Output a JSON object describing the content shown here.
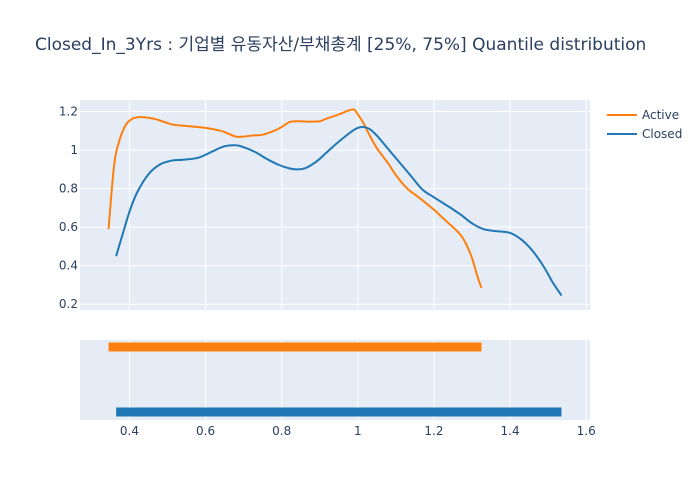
{
  "chart_data": {
    "type": "line",
    "title": "Closed_In_3Yrs : 기업별 유동자산/부채총계 [25%, 75%] Quantile distribution",
    "xlabel": "",
    "ylabel": "",
    "xlim": [
      0.27,
      1.61
    ],
    "ylim": [
      0.17,
      1.26
    ],
    "x_ticks": [
      0.4,
      0.6,
      0.8,
      1,
      1.2,
      1.4,
      1.6
    ],
    "y_ticks": [
      0.2,
      0.4,
      0.6,
      0.8,
      1,
      1.2
    ],
    "x_tick_labels": [
      "0.4",
      "0.6",
      "0.8",
      "1",
      "1.2",
      "1.4",
      "1.6"
    ],
    "y_tick_labels": [
      "0.2",
      "0.4",
      "0.6",
      "0.8",
      "1",
      "1.2"
    ],
    "grid": true,
    "legend_position": "top-right",
    "series": [
      {
        "name": "Active",
        "color": "#ff7f0e",
        "x": [
          0.345,
          0.36,
          0.375,
          0.39,
          0.405,
          0.42,
          0.44,
          0.47,
          0.5,
          0.52,
          0.55,
          0.6,
          0.64,
          0.66,
          0.68,
          0.7,
          0.72,
          0.75,
          0.78,
          0.8,
          0.82,
          0.84,
          0.87,
          0.9,
          0.92,
          0.95,
          0.975,
          0.99,
          1.0,
          1.015,
          1.03,
          1.05,
          1.08,
          1.1,
          1.13,
          1.16,
          1.2,
          1.23,
          1.25,
          1.27,
          1.285,
          1.3,
          1.315,
          1.325
        ],
        "y": [
          0.59,
          0.93,
          1.06,
          1.13,
          1.16,
          1.17,
          1.17,
          1.16,
          1.14,
          1.13,
          1.125,
          1.115,
          1.1,
          1.085,
          1.07,
          1.07,
          1.075,
          1.08,
          1.1,
          1.12,
          1.145,
          1.15,
          1.148,
          1.15,
          1.165,
          1.185,
          1.205,
          1.21,
          1.185,
          1.14,
          1.08,
          1.01,
          0.93,
          0.87,
          0.8,
          0.755,
          0.69,
          0.635,
          0.6,
          0.56,
          0.51,
          0.44,
          0.34,
          0.285
        ]
      },
      {
        "name": "Closed",
        "color": "#1f77b4",
        "x": [
          0.365,
          0.38,
          0.4,
          0.42,
          0.45,
          0.48,
          0.51,
          0.54,
          0.58,
          0.62,
          0.65,
          0.68,
          0.7,
          0.73,
          0.76,
          0.79,
          0.82,
          0.84,
          0.86,
          0.88,
          0.9,
          0.93,
          0.96,
          0.99,
          1.01,
          1.03,
          1.05,
          1.08,
          1.11,
          1.14,
          1.17,
          1.2,
          1.24,
          1.27,
          1.3,
          1.33,
          1.36,
          1.4,
          1.43,
          1.46,
          1.49,
          1.51,
          1.535
        ],
        "y": [
          0.45,
          0.55,
          0.68,
          0.78,
          0.875,
          0.925,
          0.945,
          0.95,
          0.96,
          0.995,
          1.02,
          1.025,
          1.015,
          0.99,
          0.955,
          0.925,
          0.905,
          0.9,
          0.905,
          0.925,
          0.955,
          1.01,
          1.06,
          1.105,
          1.12,
          1.11,
          1.075,
          1.005,
          0.935,
          0.865,
          0.795,
          0.755,
          0.705,
          0.665,
          0.62,
          0.59,
          0.58,
          0.57,
          0.535,
          0.475,
          0.39,
          0.32,
          0.245
        ]
      }
    ],
    "range_bars": [
      {
        "name": "Active",
        "color": "#ff7f0e",
        "start": 0.345,
        "end": 1.325
      },
      {
        "name": "Closed",
        "color": "#1f77b4",
        "start": 0.365,
        "end": 1.535
      }
    ]
  }
}
